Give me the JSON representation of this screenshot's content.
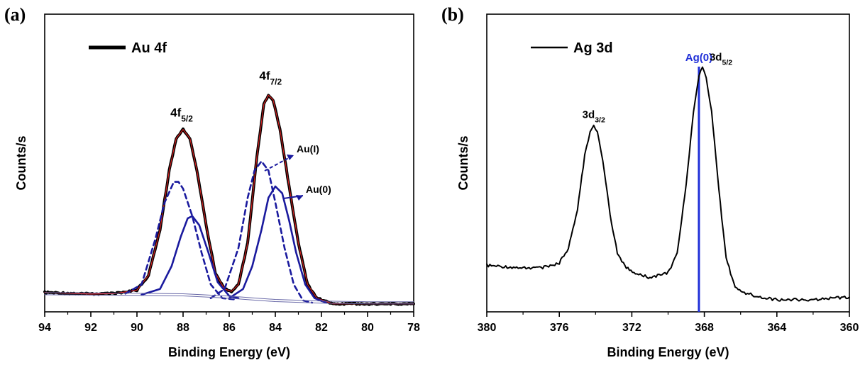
{
  "chart_data": [
    {
      "panel": "(a)",
      "type": "line",
      "xlabel": "Binding Energy (eV)",
      "ylabel": "Counts/s",
      "xlim": [
        94,
        78
      ],
      "x_reversed": true,
      "xticks": [
        "94",
        "92",
        "90",
        "88",
        "86",
        "84",
        "82",
        "80",
        "78"
      ],
      "legend": {
        "label": "Au 4f",
        "position": "top-left"
      },
      "peak_labels": [
        {
          "base": "4f",
          "sub": "5/2",
          "x": 88.0
        },
        {
          "base": "4f",
          "sub": "7/2",
          "x": 84.3
        }
      ],
      "annotations": [
        {
          "text": "Au(I)",
          "arrow_to_x": 84.4
        },
        {
          "text": "Au(0)",
          "arrow_to_x": 83.7
        }
      ],
      "series": [
        {
          "name": "Au 4f",
          "style": "measured",
          "color": "#000000",
          "x": [
            94,
            92,
            91,
            90,
            89.5,
            89.0,
            88.6,
            88.3,
            88.0,
            87.7,
            87.4,
            87.0,
            86.6,
            86.2,
            85.9,
            85.6,
            85.2,
            84.8,
            84.5,
            84.3,
            84.1,
            83.8,
            83.4,
            83.0,
            82.6,
            82.2,
            81.5,
            80,
            78
          ],
          "y": [
            0.085,
            0.078,
            0.08,
            0.095,
            0.16,
            0.36,
            0.62,
            0.76,
            0.8,
            0.76,
            0.62,
            0.38,
            0.17,
            0.1,
            0.09,
            0.12,
            0.3,
            0.68,
            0.91,
            0.95,
            0.93,
            0.8,
            0.55,
            0.3,
            0.12,
            0.06,
            0.035,
            0.035,
            0.035
          ]
        },
        {
          "name": "Envelope fit",
          "style": "fit",
          "color": "#d62020",
          "x": [
            94,
            92,
            91,
            90,
            89.5,
            89.0,
            88.6,
            88.3,
            88.0,
            87.7,
            87.4,
            87.0,
            86.6,
            86.2,
            85.9,
            85.6,
            85.2,
            84.8,
            84.5,
            84.3,
            84.1,
            83.8,
            83.4,
            83.0,
            82.6,
            82.2,
            81.5,
            80,
            78
          ],
          "y": [
            0.085,
            0.078,
            0.08,
            0.095,
            0.16,
            0.36,
            0.62,
            0.76,
            0.8,
            0.76,
            0.62,
            0.38,
            0.17,
            0.1,
            0.09,
            0.12,
            0.3,
            0.68,
            0.91,
            0.95,
            0.93,
            0.8,
            0.55,
            0.3,
            0.12,
            0.06,
            0.035,
            0.035,
            0.035
          ]
        },
        {
          "name": "Au(I) 4f5/2",
          "style": "dashed",
          "color": "#1a1a9e",
          "x": [
            90.5,
            89.8,
            89.2,
            88.8,
            88.4,
            88.2,
            88.0,
            87.6,
            87.2,
            86.8,
            86.3,
            85.8
          ],
          "y": [
            0.08,
            0.12,
            0.32,
            0.48,
            0.57,
            0.57,
            0.54,
            0.42,
            0.26,
            0.12,
            0.06,
            0.055
          ]
        },
        {
          "name": "Au(0) 4f5/2",
          "style": "solid",
          "color": "#1a1a9e",
          "x": [
            89.8,
            89.0,
            88.5,
            88.1,
            87.8,
            87.6,
            87.3,
            86.9,
            86.5,
            86.0,
            85.6
          ],
          "y": [
            0.075,
            0.1,
            0.2,
            0.33,
            0.41,
            0.42,
            0.38,
            0.26,
            0.13,
            0.07,
            0.06
          ]
        },
        {
          "name": "Au(I) 4f7/2",
          "style": "dashed",
          "color": "#1a1a9e",
          "x": [
            86.8,
            86.2,
            85.6,
            85.2,
            84.9,
            84.6,
            84.3,
            84.0,
            83.6,
            83.2,
            82.8,
            82.4
          ],
          "y": [
            0.06,
            0.1,
            0.28,
            0.5,
            0.62,
            0.66,
            0.62,
            0.48,
            0.28,
            0.12,
            0.05,
            0.04
          ]
        },
        {
          "name": "Au(0) 4f7/2",
          "style": "solid",
          "color": "#1a1a9e",
          "x": [
            86.0,
            85.4,
            85.0,
            84.6,
            84.3,
            84.0,
            83.7,
            83.4,
            83.1,
            82.7,
            82.3,
            81.8
          ],
          "y": [
            0.06,
            0.1,
            0.2,
            0.36,
            0.5,
            0.55,
            0.52,
            0.4,
            0.26,
            0.12,
            0.06,
            0.04
          ]
        },
        {
          "name": "Background",
          "style": "thin",
          "color": "#6a6aa8",
          "x": [
            94,
            90,
            88,
            86,
            85,
            84,
            82,
            80,
            78
          ],
          "y": [
            0.075,
            0.072,
            0.07,
            0.06,
            0.052,
            0.045,
            0.038,
            0.035,
            0.035
          ]
        }
      ]
    },
    {
      "panel": "(b)",
      "type": "line",
      "xlabel": "Binding Energy (eV)",
      "ylabel": "Counts/s",
      "xlim": [
        380,
        360
      ],
      "x_reversed": true,
      "xticks": [
        "380",
        "376",
        "372",
        "368",
        "364",
        "360"
      ],
      "legend": {
        "label": "Ag 3d",
        "position": "top-left"
      },
      "peak_labels": [
        {
          "base": "3d",
          "sub": "3/2",
          "x": 374.1
        },
        {
          "base": "3d",
          "sub": "5/2",
          "x": 368.1
        }
      ],
      "reference_line": {
        "label": "Ag(0)",
        "x": 368.3,
        "color": "#1f2fd8"
      },
      "series": [
        {
          "name": "Ag 3d",
          "style": "measured",
          "color": "#000000",
          "x": [
            380,
            378,
            377,
            376.0,
            375.5,
            375.0,
            374.6,
            374.3,
            374.1,
            373.9,
            373.6,
            373.2,
            372.8,
            372.3,
            371.8,
            371.0,
            370.0,
            369.5,
            369.0,
            368.6,
            368.3,
            368.1,
            367.9,
            367.6,
            367.2,
            366.8,
            366.3,
            365.8,
            365,
            364,
            362,
            360
          ],
          "y": [
            0.19,
            0.18,
            0.18,
            0.2,
            0.26,
            0.42,
            0.64,
            0.74,
            0.76,
            0.74,
            0.62,
            0.4,
            0.24,
            0.18,
            0.16,
            0.14,
            0.16,
            0.24,
            0.52,
            0.82,
            0.97,
            1.0,
            0.96,
            0.82,
            0.5,
            0.22,
            0.1,
            0.08,
            0.06,
            0.05,
            0.05,
            0.06
          ]
        }
      ]
    }
  ]
}
